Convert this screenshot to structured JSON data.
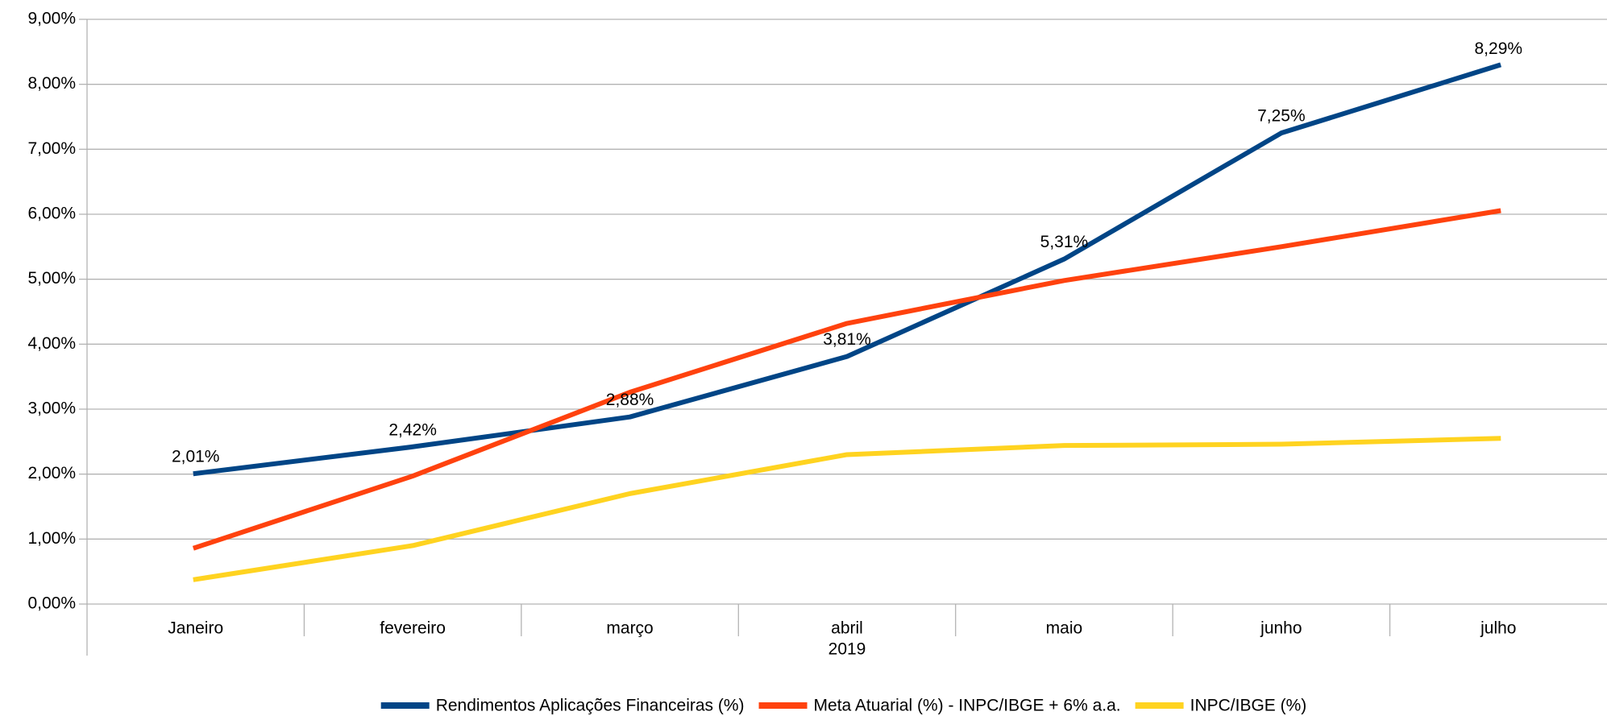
{
  "chart_data": {
    "type": "line",
    "categories": [
      "Janeiro",
      "fevereiro",
      "março",
      "abril",
      "maio",
      "junho",
      "julho"
    ],
    "x_axis_label": "2019",
    "series": [
      {
        "name": "Rendimentos Aplicações Financeiras (%)",
        "color": "#004586",
        "values": [
          2.01,
          2.42,
          2.88,
          3.81,
          5.31,
          7.25,
          8.29
        ],
        "value_labels": [
          "2,01%",
          "2,42%",
          "2,88%",
          "3,81%",
          "5,31%",
          "7,25%",
          "8,29%"
        ]
      },
      {
        "name": "Meta Atuarial (%) - INPC/IBGE + 6% a.a.",
        "color": "#ff420e",
        "values": [
          0.87,
          1.97,
          3.26,
          4.32,
          4.98,
          5.5,
          6.05
        ]
      },
      {
        "name": "INPC/IBGE (%)",
        "color": "#ffd320",
        "values": [
          0.38,
          0.9,
          1.7,
          2.3,
          2.44,
          2.46,
          2.55
        ]
      }
    ],
    "ylim": [
      0,
      9
    ],
    "yticks": [
      {
        "value": 0,
        "label": "0,00%"
      },
      {
        "value": 1,
        "label": "1,00%"
      },
      {
        "value": 2,
        "label": "2,00%"
      },
      {
        "value": 3,
        "label": "3,00%"
      },
      {
        "value": 4,
        "label": "4,00%"
      },
      {
        "value": 5,
        "label": "5,00%"
      },
      {
        "value": 6,
        "label": "6,00%"
      },
      {
        "value": 7,
        "label": "7,00%"
      },
      {
        "value": 8,
        "label": "8,00%"
      },
      {
        "value": 9,
        "label": "9,00%"
      }
    ],
    "grid": true,
    "legend": "bottom"
  }
}
